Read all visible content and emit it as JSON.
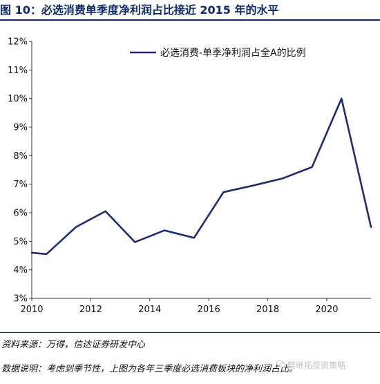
{
  "figure": {
    "title": "图 10：必选消费单季度净利润占比接近 2015 年的水平",
    "source": "资料来源：万得，信达证券研发中心",
    "note": "数据说明：考虑到季节性，上图为各年三季度必选消费板块的净利润占比。",
    "watermark": "樊继拓投资策略"
  },
  "chart_data": {
    "type": "line",
    "title": "",
    "xlabel": "",
    "ylabel": "",
    "xlim": [
      2010,
      2021.5
    ],
    "ylim": [
      3,
      12
    ],
    "x_ticks": [
      2010,
      2012,
      2014,
      2016,
      2018,
      2020
    ],
    "y_ticks": [
      "3%",
      "4%",
      "5%",
      "6%",
      "7%",
      "8%",
      "9%",
      "10%",
      "11%",
      "12%"
    ],
    "y_tick_values": [
      3,
      4,
      5,
      6,
      7,
      8,
      9,
      10,
      11,
      12
    ],
    "grid": false,
    "legend_position": "top-right",
    "series": [
      {
        "name": "必选消费-单季净利润占全A的比例",
        "color": "#1c2a7a",
        "x": [
          2010,
          2010.5,
          2011.5,
          2012.5,
          2013.5,
          2014.5,
          2015.5,
          2016.5,
          2017.5,
          2018.5,
          2019.5,
          2020.5,
          2021.5
        ],
        "y": [
          4.6,
          4.55,
          5.5,
          6.05,
          4.97,
          5.38,
          5.12,
          6.72,
          6.95,
          7.2,
          7.6,
          10.0,
          5.5
        ]
      }
    ]
  }
}
